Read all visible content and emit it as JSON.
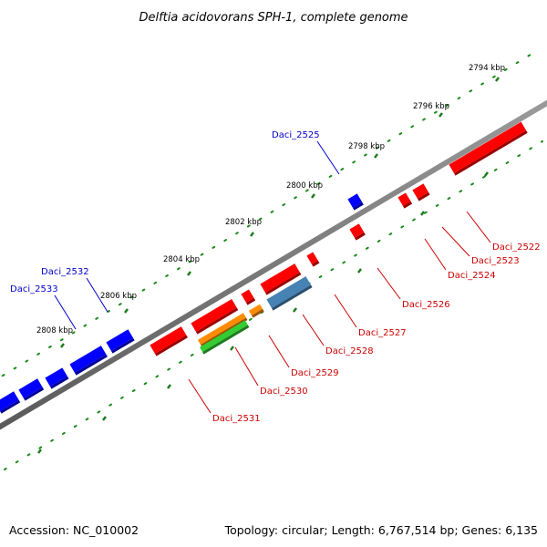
{
  "title": "Delftia acidovorans SPH-1, complete genome",
  "footer": {
    "accession": "Accession: NC_010002",
    "summary": "Topology: circular; Length: 6,767,514 bp; Genes: 6,135"
  },
  "kbp_ticks": [
    "2794 kbp",
    "2796 kbp",
    "2798 kbp",
    "2800 kbp",
    "2802 kbp",
    "2804 kbp",
    "2806 kbp",
    "2808 kbp"
  ],
  "genes": [
    {
      "id": "Daci_2522",
      "strand": "minus",
      "color": "#ff0000"
    },
    {
      "id": "Daci_2523",
      "strand": "minus",
      "color": "#ff0000"
    },
    {
      "id": "Daci_2524",
      "strand": "minus",
      "color": "#ff0000"
    },
    {
      "id": "Daci_2525",
      "strand": "plus",
      "color": "#0000ff"
    },
    {
      "id": "Daci_2526",
      "strand": "minus",
      "color": "#ff0000"
    },
    {
      "id": "Daci_2527",
      "strand": "minus",
      "color": "#ff0000"
    },
    {
      "id": "Daci_2528",
      "strand": "minus",
      "color": "#4682b4"
    },
    {
      "id": "Daci_2529",
      "strand": "minus",
      "color": "#ff8c00"
    },
    {
      "id": "Daci_2530",
      "strand": "minus",
      "color": "#32cd32"
    },
    {
      "id": "Daci_2531",
      "strand": "minus",
      "color": "#ff0000"
    },
    {
      "id": "Daci_2532",
      "strand": "plus",
      "color": "#0000ff"
    },
    {
      "id": "Daci_2533",
      "strand": "plus",
      "color": "#0000ff"
    }
  ]
}
